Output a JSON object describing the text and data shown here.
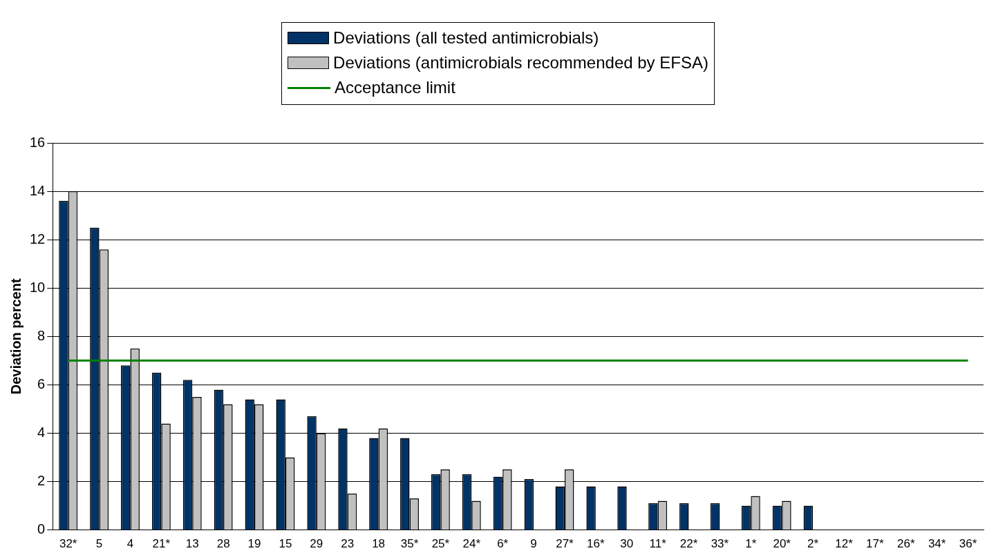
{
  "chart_data": {
    "type": "bar",
    "ylabel": "Deviation percent",
    "categories": [
      "32*",
      "5",
      "4",
      "21*",
      "13",
      "28",
      "19",
      "15",
      "29",
      "23",
      "18",
      "35*",
      "25*",
      "24*",
      "6*",
      "9",
      "27*",
      "16*",
      "30",
      "11*",
      "22*",
      "33*",
      "1*",
      "20*",
      "2*",
      "12*",
      "17*",
      "26*",
      "34*",
      "36*"
    ],
    "series": [
      {
        "name": "Deviations (all tested antimicrobials)",
        "color": "#003366",
        "values": [
          13.6,
          12.5,
          6.8,
          6.5,
          6.2,
          5.8,
          5.4,
          5.4,
          4.7,
          4.2,
          3.8,
          3.8,
          2.3,
          2.3,
          2.2,
          2.1,
          1.8,
          1.8,
          1.8,
          1.1,
          1.1,
          1.1,
          1.0,
          1.0,
          1.0,
          0,
          0,
          0,
          0,
          0
        ]
      },
      {
        "name": "Deviations (antimicrobials recommended by EFSA)",
        "color": "#c0c0c0",
        "values": [
          14.0,
          11.6,
          7.5,
          4.4,
          5.5,
          5.2,
          5.2,
          3.0,
          4.0,
          1.5,
          4.2,
          1.3,
          2.5,
          1.2,
          2.5,
          0,
          2.5,
          0,
          0,
          1.2,
          0,
          0,
          1.4,
          1.2,
          0,
          0,
          0,
          0,
          0,
          0
        ]
      },
      {
        "name": "Acceptance limit",
        "type": "line",
        "color": "#008000",
        "values": [
          7,
          7,
          7,
          7,
          7,
          7,
          7,
          7,
          7,
          7,
          7,
          7,
          7,
          7,
          7,
          7,
          7,
          7,
          7,
          7,
          7,
          7,
          7,
          7,
          7,
          7,
          7,
          7,
          7,
          7
        ]
      }
    ],
    "ylim": [
      0,
      16
    ],
    "yticks": [
      0,
      2,
      4,
      6,
      8,
      10,
      12,
      14,
      16
    ],
    "grid": "y",
    "legend": "top"
  }
}
